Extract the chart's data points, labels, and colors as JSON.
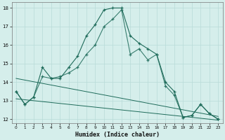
{
  "xlabel": "Humidex (Indice chaleur)",
  "bg_color": "#d5eeeb",
  "grid_color": "#b8dbd8",
  "line_color": "#1e6b5a",
  "xlim": [
    -0.5,
    23.5
  ],
  "ylim": [
    11.8,
    18.3
  ],
  "yticks": [
    12,
    13,
    14,
    15,
    16,
    17,
    18
  ],
  "xticks": [
    0,
    1,
    2,
    3,
    4,
    5,
    6,
    7,
    8,
    9,
    10,
    11,
    12,
    13,
    14,
    15,
    16,
    17,
    18,
    19,
    20,
    21,
    22,
    23
  ],
  "line_main": [
    13.5,
    12.8,
    13.2,
    14.8,
    14.2,
    14.2,
    14.8,
    15.4,
    16.5,
    17.1,
    17.9,
    18.0,
    18.0,
    16.5,
    16.1,
    15.8,
    15.5,
    14.0,
    13.5,
    12.1,
    12.2,
    12.8,
    12.3,
    12.0
  ],
  "line_secondary": [
    13.5,
    12.8,
    13.2,
    14.3,
    14.2,
    14.3,
    14.5,
    14.8,
    15.5,
    16.0,
    17.0,
    17.4,
    17.9,
    15.5,
    15.8,
    15.2,
    15.5,
    13.8,
    13.3,
    12.1,
    12.2,
    12.8,
    12.3,
    12.0
  ],
  "trend1": {
    "x": [
      0,
      23
    ],
    "y": [
      14.2,
      12.15
    ]
  },
  "trend2": {
    "x": [
      0,
      23
    ],
    "y": [
      13.1,
      11.95
    ]
  }
}
